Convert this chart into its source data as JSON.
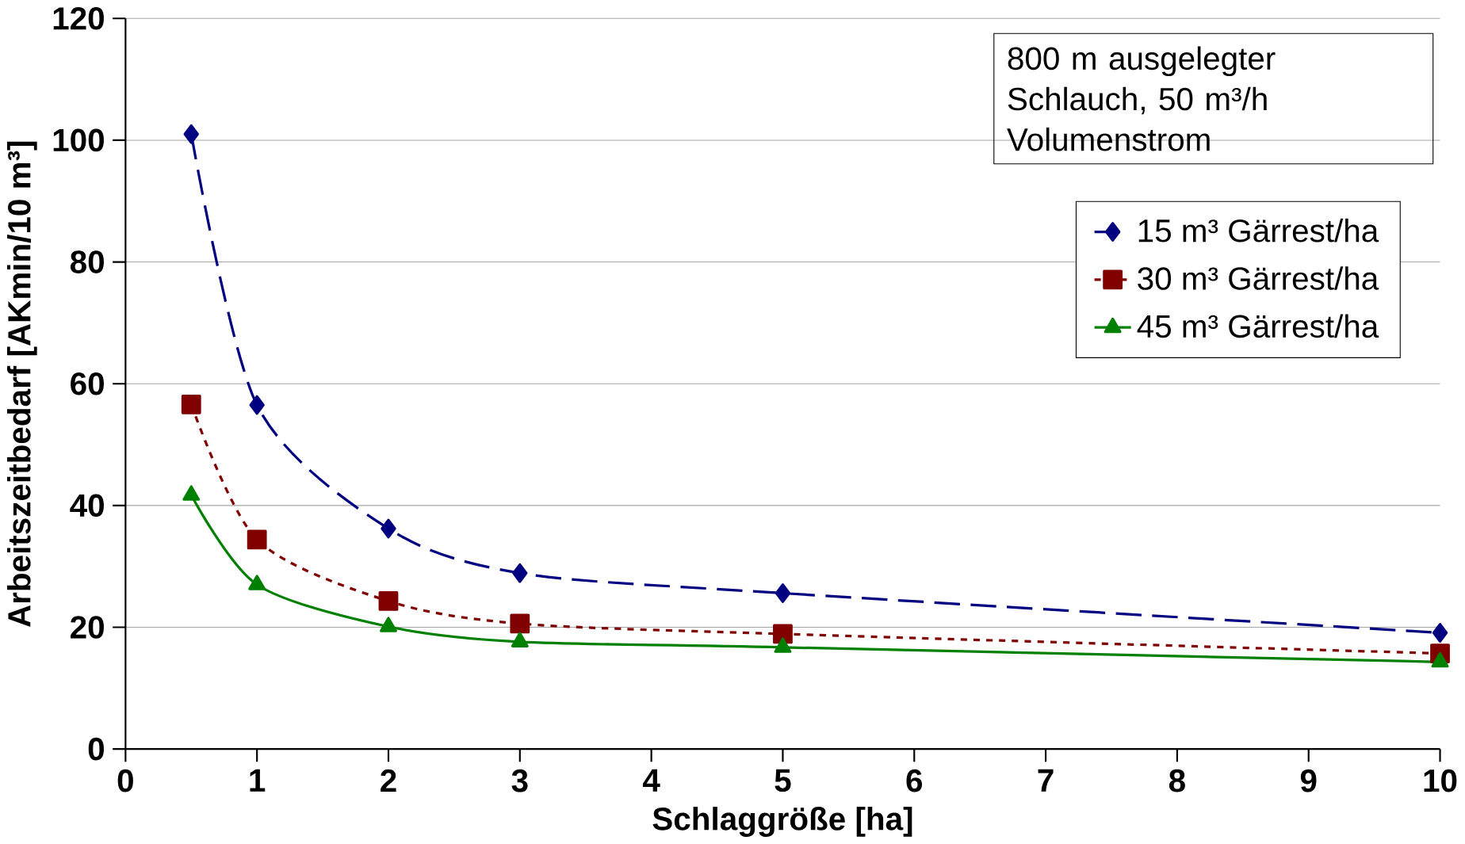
{
  "chart_data": {
    "type": "line",
    "xlabel": "Schlaggröße [ha]",
    "ylabel": "Arbeitszeitbedarf [AKmin/10 m³]",
    "x": [
      0.5,
      1,
      2,
      3,
      5,
      10
    ],
    "series": [
      {
        "name": "15 m³ Gärrest/ha",
        "color": "#000080",
        "marker": "diamond",
        "line_style": "dashed",
        "values": [
          101,
          56.5,
          36.2,
          28.9,
          25.6,
          19.1
        ]
      },
      {
        "name": "30 m³ Gärrest/ha",
        "color": "#800000",
        "marker": "square",
        "line_style": "dotted",
        "values": [
          56.6,
          34.4,
          24.3,
          20.6,
          18.9,
          15.7
        ]
      },
      {
        "name": "45 m³ Gärrest/ha",
        "color": "#008000",
        "marker": "triangle",
        "line_style": "solid",
        "values": [
          41.7,
          27.0,
          20.1,
          17.6,
          16.7,
          14.3
        ]
      }
    ],
    "xlim": [
      0,
      10
    ],
    "ylim": [
      0,
      120
    ],
    "xticks": [
      0,
      1,
      2,
      3,
      4,
      5,
      6,
      7,
      8,
      9,
      10
    ],
    "yticks": [
      0,
      20,
      40,
      60,
      80,
      100,
      120
    ],
    "grid": "y",
    "legend": "top right",
    "annotations": [
      "800 m ausgelegter Schlauch, 50 m³/h Volumenstrom"
    ]
  }
}
